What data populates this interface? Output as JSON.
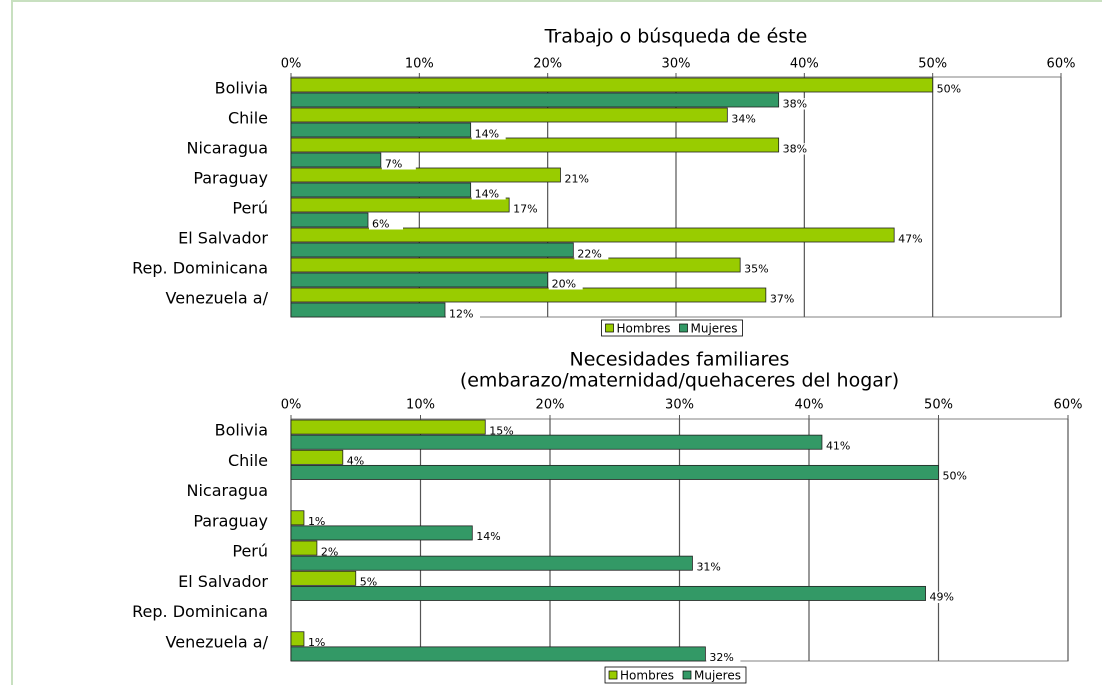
{
  "chart_data": [
    {
      "type": "bar",
      "orientation": "horizontal",
      "title": "Trabajo o búsqueda de éste",
      "categories": [
        "Bolivia",
        "Chile",
        "Nicaragua",
        "Paraguay",
        "Perú",
        "El Salvador",
        "Rep. Dominicana",
        "Venezuela a/"
      ],
      "series": [
        {
          "name": "Hombres",
          "color": "#99cc00",
          "values": [
            50,
            34,
            38,
            21,
            17,
            47,
            35,
            37
          ],
          "value_labels": [
            "50%",
            "34%",
            "38%",
            "21%",
            "17%",
            "47%",
            "35%",
            "37%"
          ]
        },
        {
          "name": "Mujeres",
          "color": "#339966",
          "values": [
            38,
            14,
            7,
            14,
            6,
            22,
            20,
            12
          ],
          "value_labels": [
            "38%",
            "14%",
            "7%",
            "14%",
            "6%",
            "22%",
            "20%",
            "12%"
          ]
        }
      ],
      "xlim": [
        0,
        60
      ],
      "xticks": [
        {
          "value": 0,
          "label": "0%"
        },
        {
          "value": 10,
          "label": "10%"
        },
        {
          "value": 20,
          "label": "20%"
        },
        {
          "value": 30,
          "label": "30%"
        },
        {
          "value": 40,
          "label": "40%"
        },
        {
          "value": 50,
          "label": "50%"
        },
        {
          "value": 60,
          "label": "60%"
        }
      ],
      "grid": true,
      "legend": "bottom"
    },
    {
      "type": "bar",
      "orientation": "horizontal",
      "title": "Necesidades familiares",
      "subtitle": "(embarazo/maternidad/quehaceres del hogar)",
      "categories": [
        "Bolivia",
        "Chile",
        "Nicaragua",
        "Paraguay",
        "Perú",
        "El Salvador",
        "Rep. Dominicana",
        "Venezuela a/"
      ],
      "series": [
        {
          "name": "Hombres",
          "color": "#99cc00",
          "values": [
            15,
            4,
            null,
            1,
            2,
            5,
            null,
            1
          ],
          "value_labels": [
            "15%",
            "4%",
            null,
            "1%",
            "2%",
            "5%",
            null,
            "1%"
          ]
        },
        {
          "name": "Mujeres",
          "color": "#339966",
          "values": [
            41,
            50,
            null,
            14,
            31,
            49,
            null,
            32
          ],
          "value_labels": [
            "41%",
            "50%",
            null,
            "14%",
            "31%",
            "49%",
            null,
            "32%"
          ]
        }
      ],
      "xlim": [
        0,
        60
      ],
      "xticks": [
        {
          "value": 0,
          "label": "0%"
        },
        {
          "value": 10,
          "label": "10%"
        },
        {
          "value": 20,
          "label": "20%"
        },
        {
          "value": 30,
          "label": "30%"
        },
        {
          "value": 40,
          "label": "40%"
        },
        {
          "value": 50,
          "label": "50%"
        },
        {
          "value": 60,
          "label": "60%"
        }
      ],
      "grid": true,
      "legend": "bottom"
    }
  ]
}
